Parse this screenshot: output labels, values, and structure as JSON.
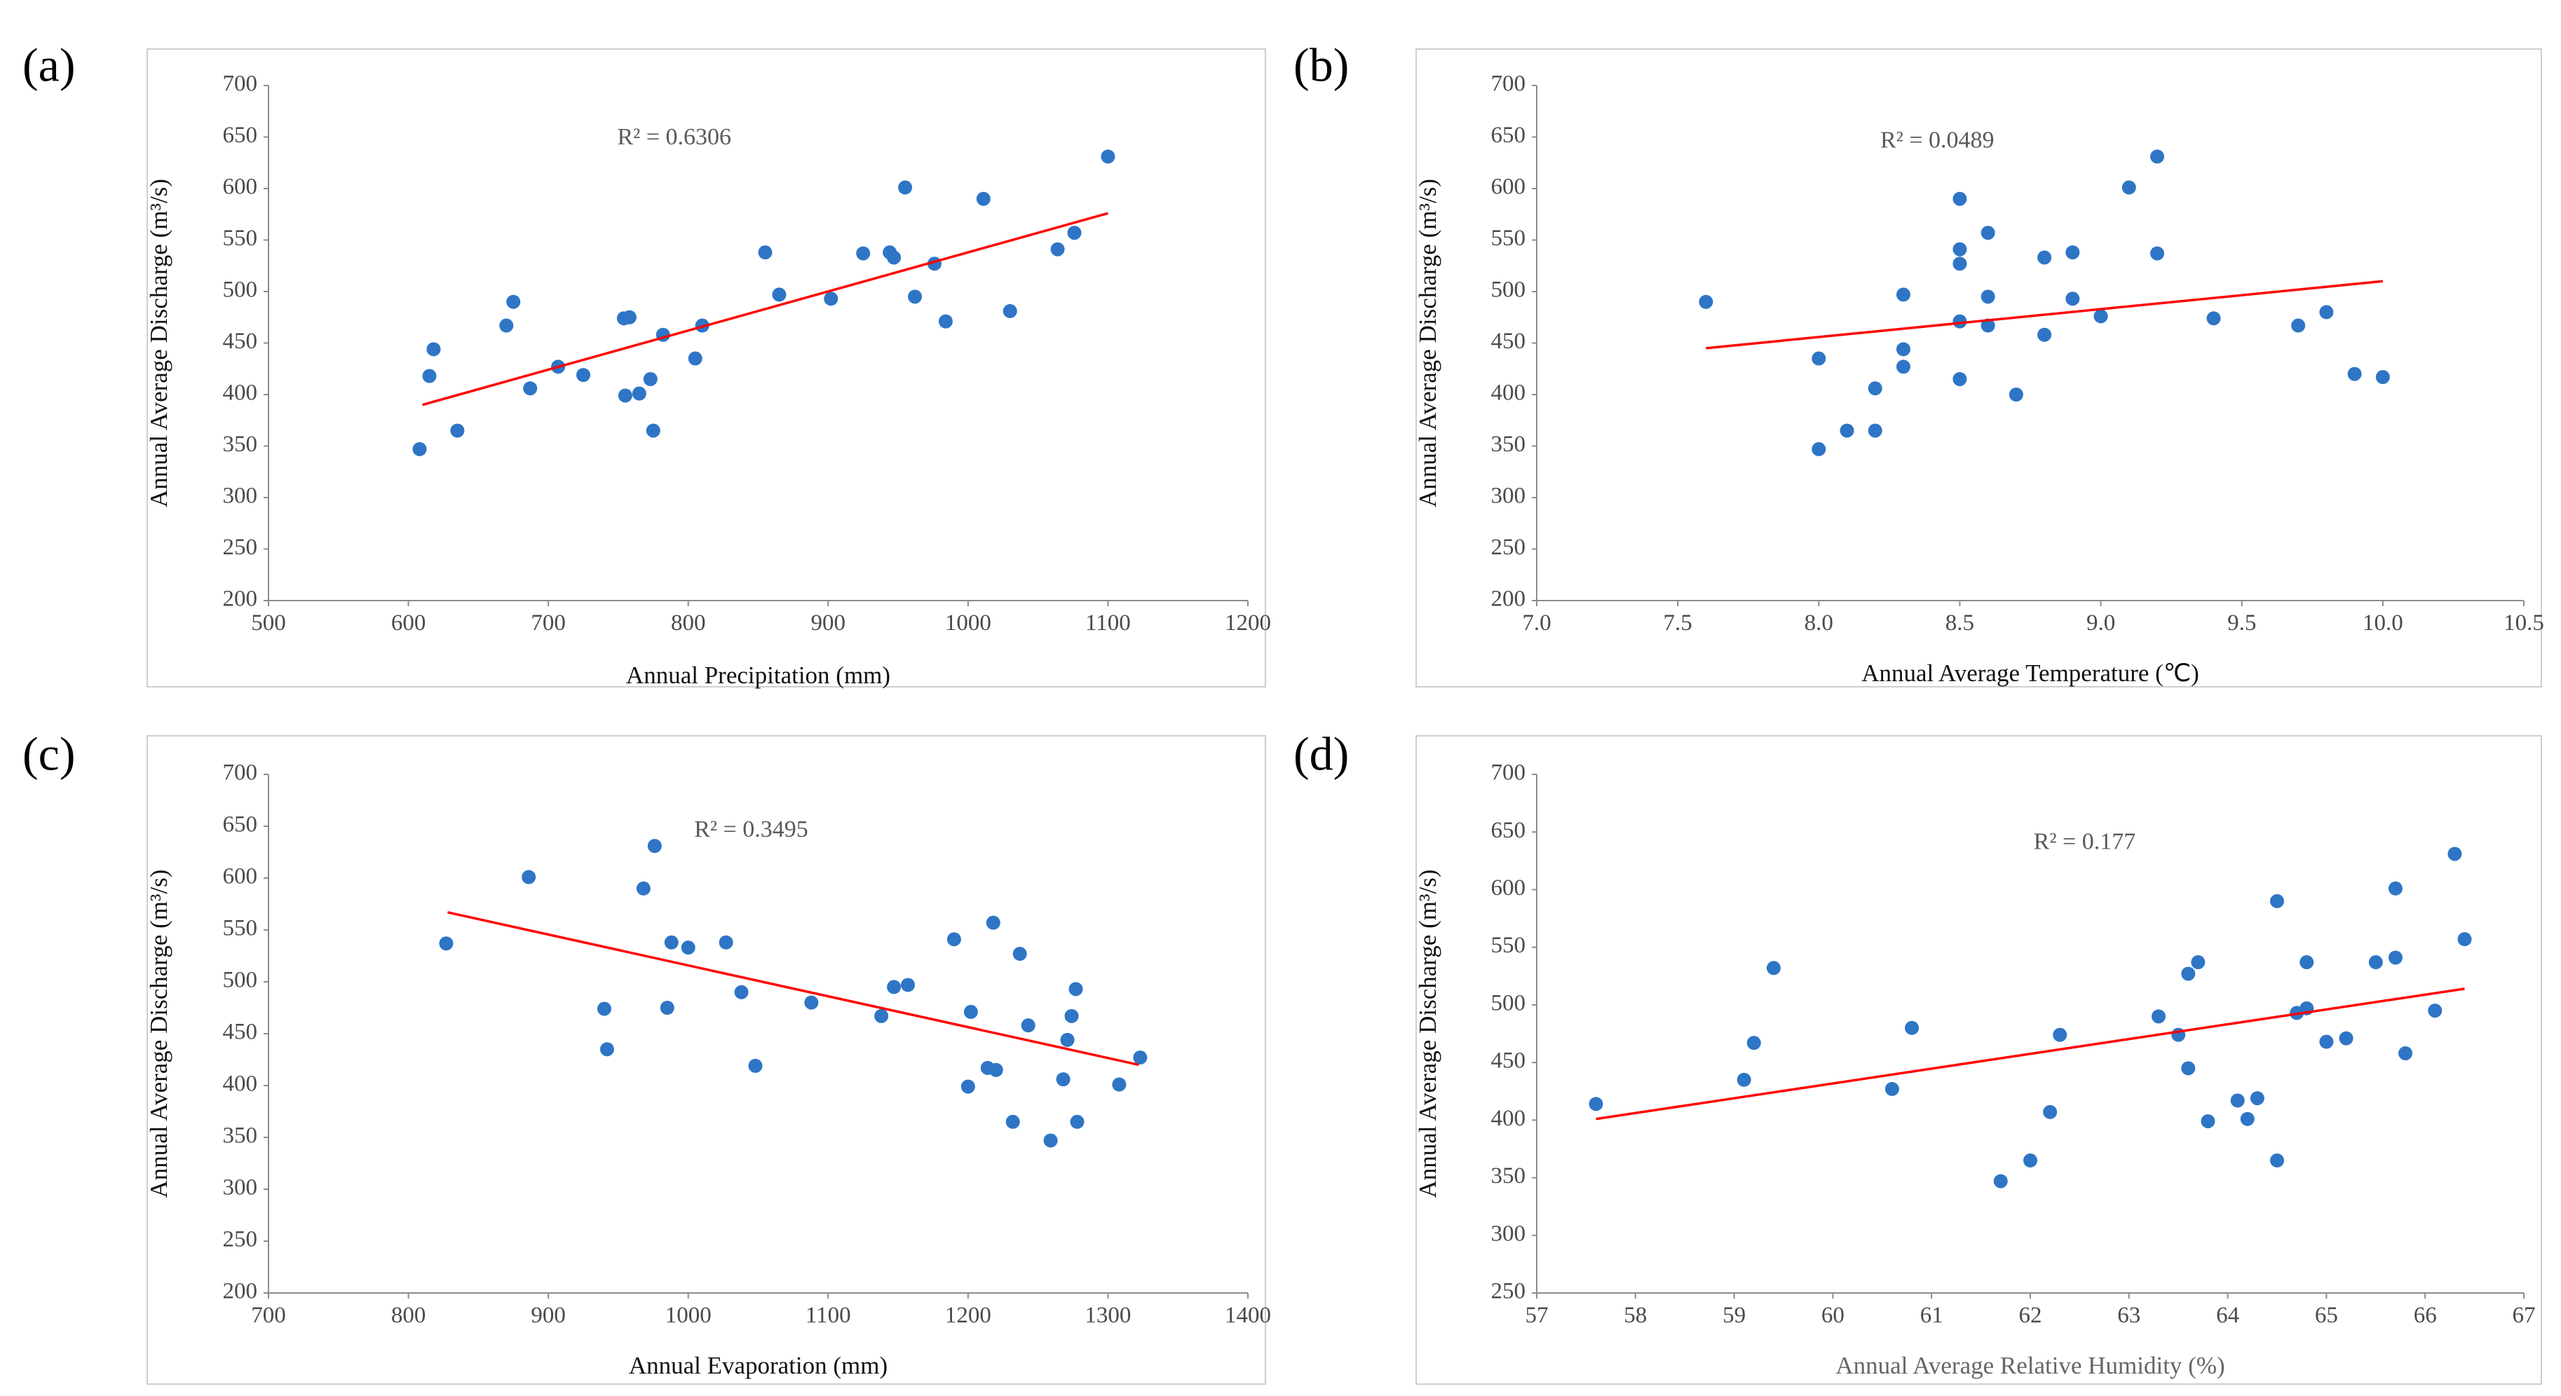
{
  "chart_data": [
    {
      "type": "scatter",
      "panel_label": "(a)",
      "xlabel": "Annual Precipitation (mm)",
      "ylabel": "Annual Average Discharge (m³/s)",
      "xlim": [
        500,
        1200
      ],
      "ylim": [
        200,
        700
      ],
      "xticks": [
        500,
        600,
        700,
        800,
        900,
        1000,
        1100,
        1200
      ],
      "yticks": [
        200,
        250,
        300,
        350,
        400,
        450,
        500,
        550,
        600,
        650,
        700
      ],
      "annotation": "R² = 0.6306",
      "annotation_pos": [
        790,
        648
      ],
      "trendline": {
        "x": [
          610,
          1100
        ],
        "y": [
          390,
          576
        ]
      },
      "colors": {
        "points": "#2e75c6",
        "trendline": "#ff0000"
      },
      "points": [
        [
          608,
          347
        ],
        [
          615,
          418
        ],
        [
          618,
          444
        ],
        [
          635,
          365
        ],
        [
          670,
          467
        ],
        [
          675,
          490
        ],
        [
          687,
          406
        ],
        [
          707,
          427
        ],
        [
          725,
          419
        ],
        [
          754,
          474
        ],
        [
          755,
          399
        ],
        [
          758,
          475
        ],
        [
          765,
          401
        ],
        [
          773,
          415
        ],
        [
          775,
          365
        ],
        [
          782,
          458
        ],
        [
          805,
          435
        ],
        [
          810,
          467
        ],
        [
          855,
          538
        ],
        [
          865,
          497
        ],
        [
          902,
          493
        ],
        [
          925,
          537
        ],
        [
          944,
          538
        ],
        [
          947,
          533
        ],
        [
          955,
          601
        ],
        [
          962,
          495
        ],
        [
          976,
          527
        ],
        [
          984,
          471
        ],
        [
          1011,
          590
        ],
        [
          1030,
          481
        ],
        [
          1064,
          541
        ],
        [
          1076,
          557
        ],
        [
          1100,
          631
        ]
      ]
    },
    {
      "type": "scatter",
      "panel_label": "(b)",
      "xlabel": "Annual Average Temperature (℃)",
      "ylabel": "Annual Average Discharge (m³/s)",
      "xlim": [
        7.0,
        10.5
      ],
      "ylim": [
        200,
        700
      ],
      "xticks": [
        "7.0",
        "7.5",
        "8.0",
        "8.5",
        "9.0",
        "9.5",
        "10.0",
        "10.5"
      ],
      "yticks": [
        200,
        250,
        300,
        350,
        400,
        450,
        500,
        550,
        600,
        650,
        700
      ],
      "annotation": "R² = 0.0489",
      "annotation_pos": [
        8.42,
        645
      ],
      "trendline": {
        "x": [
          7.6,
          10.0
        ],
        "y": [
          445,
          510
        ]
      },
      "colors": {
        "points": "#2e75c6",
        "trendline": "#ff0000"
      },
      "points": [
        [
          7.6,
          490
        ],
        [
          8.0,
          347
        ],
        [
          8.0,
          435
        ],
        [
          8.1,
          365
        ],
        [
          8.2,
          365
        ],
        [
          8.2,
          406
        ],
        [
          8.3,
          427
        ],
        [
          8.3,
          444
        ],
        [
          8.3,
          497
        ],
        [
          8.5,
          415
        ],
        [
          8.5,
          471
        ],
        [
          8.5,
          527
        ],
        [
          8.5,
          541
        ],
        [
          8.5,
          590
        ],
        [
          8.6,
          467
        ],
        [
          8.6,
          495
        ],
        [
          8.6,
          557
        ],
        [
          8.7,
          400
        ],
        [
          8.8,
          458
        ],
        [
          8.8,
          533
        ],
        [
          8.9,
          493
        ],
        [
          8.9,
          538
        ],
        [
          9.0,
          476
        ],
        [
          9.1,
          601
        ],
        [
          9.2,
          631
        ],
        [
          9.2,
          537
        ],
        [
          9.4,
          474
        ],
        [
          9.7,
          467
        ],
        [
          9.8,
          480
        ],
        [
          9.9,
          420
        ],
        [
          10.0,
          417
        ]
      ]
    },
    {
      "type": "scatter",
      "panel_label": "(c)",
      "xlabel": "Annual  Evaporation (mm)",
      "ylabel": "Annual Average Discharge (m³/s)",
      "xlim": [
        700,
        1400
      ],
      "ylim": [
        200,
        700
      ],
      "xticks": [
        700,
        800,
        900,
        1000,
        1100,
        1200,
        1300,
        1400
      ],
      "yticks": [
        200,
        250,
        300,
        350,
        400,
        450,
        500,
        550,
        600,
        650,
        700
      ],
      "annotation": "R² = 0.3495",
      "annotation_pos": [
        1045,
        645
      ],
      "trendline": {
        "x": [
          828,
          1322
        ],
        "y": [
          567,
          420
        ]
      },
      "colors": {
        "points": "#2e75c6",
        "trendline": "#ff0000"
      },
      "points": [
        [
          827,
          537
        ],
        [
          886,
          601
        ],
        [
          940,
          474
        ],
        [
          942,
          435
        ],
        [
          968,
          590
        ],
        [
          976,
          631
        ],
        [
          985,
          475
        ],
        [
          988,
          538
        ],
        [
          1000,
          533
        ],
        [
          1027,
          538
        ],
        [
          1038,
          490
        ],
        [
          1048,
          419
        ],
        [
          1088,
          480
        ],
        [
          1138,
          467
        ],
        [
          1147,
          495
        ],
        [
          1157,
          497
        ],
        [
          1190,
          541
        ],
        [
          1200,
          399
        ],
        [
          1202,
          471
        ],
        [
          1214,
          417
        ],
        [
          1218,
          557
        ],
        [
          1220,
          415
        ],
        [
          1232,
          365
        ],
        [
          1237,
          527
        ],
        [
          1243,
          458
        ],
        [
          1259,
          347
        ],
        [
          1268,
          406
        ],
        [
          1271,
          444
        ],
        [
          1274,
          467
        ],
        [
          1277,
          493
        ],
        [
          1278,
          365
        ],
        [
          1308,
          401
        ],
        [
          1323,
          427
        ]
      ]
    },
    {
      "type": "scatter",
      "panel_label": "(d)",
      "xlabel": "Annual Average Relative Humidity (%)",
      "ylabel": "Annual Average Discharge (m³/s)",
      "xlim": [
        57,
        67
      ],
      "ylim": [
        250,
        700
      ],
      "xticks": [
        57,
        58,
        59,
        60,
        61,
        62,
        63,
        64,
        65,
        66,
        67
      ],
      "yticks": [
        250,
        300,
        350,
        400,
        450,
        500,
        550,
        600,
        650,
        700
      ],
      "annotation": "R² = 0.177",
      "annotation_pos": [
        62.55,
        640
      ],
      "trendline": {
        "x": [
          57.6,
          66.4
        ],
        "y": [
          401,
          514
        ]
      },
      "colors": {
        "points": "#2e75c6",
        "trendline": "#ff0000"
      },
      "points": [
        [
          57.6,
          414
        ],
        [
          59.1,
          435
        ],
        [
          59.2,
          467
        ],
        [
          59.4,
          532
        ],
        [
          60.6,
          427
        ],
        [
          60.8,
          480
        ],
        [
          61.7,
          347
        ],
        [
          62.0,
          365
        ],
        [
          62.2,
          407
        ],
        [
          62.3,
          474
        ],
        [
          63.3,
          490
        ],
        [
          63.5,
          474
        ],
        [
          63.6,
          445
        ],
        [
          63.6,
          527
        ],
        [
          63.7,
          537
        ],
        [
          63.8,
          399
        ],
        [
          64.1,
          417
        ],
        [
          64.2,
          401
        ],
        [
          64.3,
          419
        ],
        [
          64.5,
          365
        ],
        [
          64.5,
          590
        ],
        [
          64.7,
          493
        ],
        [
          64.8,
          497
        ],
        [
          64.8,
          537
        ],
        [
          65.0,
          468
        ],
        [
          65.2,
          471
        ],
        [
          65.5,
          537
        ],
        [
          65.7,
          541
        ],
        [
          65.7,
          601
        ],
        [
          65.8,
          458
        ],
        [
          66.1,
          495
        ],
        [
          66.3,
          631
        ],
        [
          66.4,
          557
        ]
      ]
    }
  ]
}
